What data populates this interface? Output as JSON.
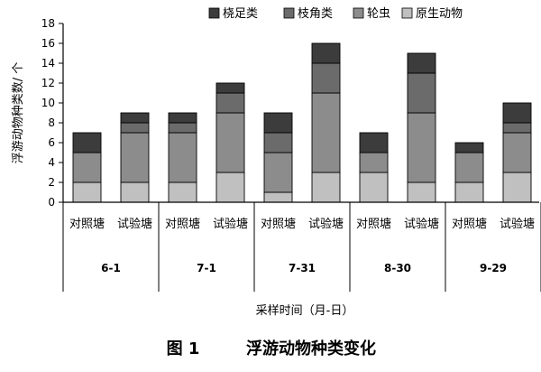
{
  "chart_data": {
    "type": "bar",
    "stacked": true,
    "ylabel": "浮游动物种类数/ 个",
    "xlabel": "采样时间（月-日）",
    "caption_num": "图 1",
    "caption_title": "浮游动物种类变化",
    "ylim": [
      0,
      18
    ],
    "yticks": [
      0,
      2,
      4,
      6,
      8,
      10,
      12,
      14,
      16,
      18
    ],
    "grid": false,
    "legend_position": "top-right",
    "categories": [
      "对照塘",
      "试验塘",
      "对照塘",
      "试验塘",
      "对照塘",
      "试验塘",
      "对照塘",
      "试验塘",
      "对照塘",
      "试验塘"
    ],
    "groups": [
      "6-1",
      "7-1",
      "7-31",
      "8-30",
      "9-29"
    ],
    "series": [
      {
        "name": "原生动物",
        "color": "#c0c0c0",
        "values": [
          2,
          2,
          2,
          3,
          1,
          3,
          3,
          2,
          2,
          3
        ]
      },
      {
        "name": "轮虫",
        "color": "#8c8c8c",
        "values": [
          3,
          5,
          5,
          6,
          4,
          8,
          2,
          7,
          3,
          4
        ]
      },
      {
        "name": "枝角类",
        "color": "#6b6b6b",
        "values": [
          0,
          1,
          1,
          2,
          2,
          3,
          0,
          4,
          0,
          1
        ]
      },
      {
        "name": "桡足类",
        "color": "#3c3c3c",
        "values": [
          2,
          1,
          1,
          1,
          2,
          2,
          2,
          2,
          1,
          2
        ]
      }
    ],
    "legend_order": [
      "桡足类",
      "枝角类",
      "轮虫",
      "原生动物"
    ]
  }
}
